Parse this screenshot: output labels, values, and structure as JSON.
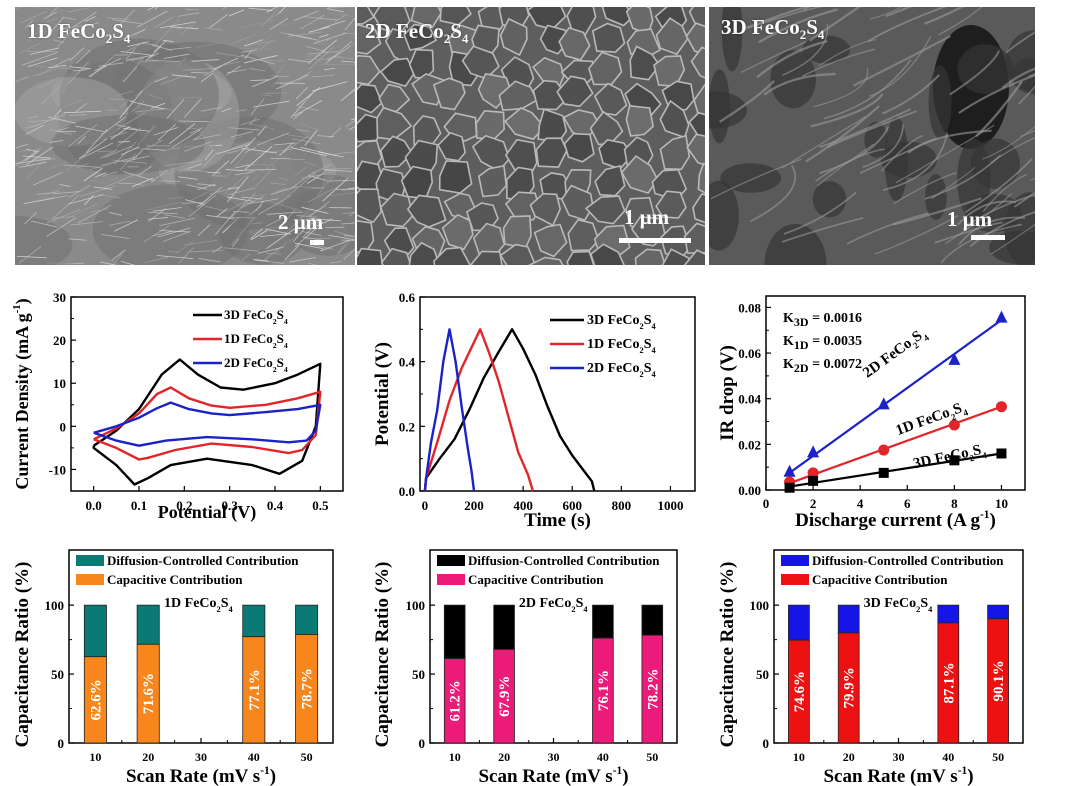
{
  "sem_images": [
    {
      "label": "1D FeCo",
      "sub": "2",
      "label2": "S",
      "sub2": "4",
      "scale": "2 μm",
      "texture": "nanowire"
    },
    {
      "label": "2D FeCo",
      "sub": "2",
      "label2": "S",
      "sub2": "4",
      "scale": "1 μm",
      "texture": "nanosheet"
    },
    {
      "label": "3D FeCo",
      "sub": "2",
      "label2": "S",
      "sub2": "4",
      "scale": "1 μm",
      "texture": "network"
    }
  ],
  "colors": {
    "3D": "#000000",
    "1D": "#e0262a",
    "2D": "#1a22c8",
    "teal": "#0b7a75",
    "orange": "#f7861d",
    "black": "#000000",
    "pink": "#ec1a78",
    "blue": "#1515e8",
    "red": "#ee1111"
  },
  "chart_data": [
    {
      "id": "cv",
      "type": "line",
      "xlabel": "Potential (V)",
      "ylabel": "Current Density (mA g",
      "ylabel_sup": "-1",
      "ylabel_end": ")",
      "xlim": [
        -0.05,
        0.55
      ],
      "ylim": [
        -15,
        30
      ],
      "xticks": [
        "0.0",
        "0.1",
        "0.2",
        "0.3",
        "0.4",
        "0.5"
      ],
      "xtick_values": [
        0,
        0.1,
        0.2,
        0.3,
        0.4,
        0.5
      ],
      "yticks": [
        "-10",
        "0",
        "10",
        "20",
        "30"
      ],
      "ytick_values": [
        -10,
        0,
        10,
        20,
        30
      ],
      "legend": [
        "3D FeCo2S4",
        "1D FeCo2S4",
        "2D FeCo2S4"
      ],
      "legend_position": "top-right",
      "series": [
        {
          "name": "3D FeCo2S4",
          "key": "3D",
          "anodic": [
            [
              0.0,
              -4.5
            ],
            [
              0.05,
              -1
            ],
            [
              0.1,
              4
            ],
            [
              0.15,
              12
            ],
            [
              0.19,
              15.5
            ],
            [
              0.23,
              12
            ],
            [
              0.28,
              9
            ],
            [
              0.33,
              8.5
            ],
            [
              0.4,
              10
            ],
            [
              0.45,
              12
            ],
            [
              0.5,
              14.5
            ]
          ],
          "cathodic": [
            [
              0.5,
              14.5
            ],
            [
              0.49,
              0
            ],
            [
              0.46,
              -8
            ],
            [
              0.41,
              -11
            ],
            [
              0.35,
              -9
            ],
            [
              0.25,
              -7.5
            ],
            [
              0.17,
              -9
            ],
            [
              0.12,
              -12
            ],
            [
              0.09,
              -13.5
            ],
            [
              0.05,
              -9
            ],
            [
              0.0,
              -5
            ],
            [
              0.0,
              -4.5
            ]
          ]
        },
        {
          "name": "1D FeCo2S4",
          "key": "1D",
          "anodic": [
            [
              0.0,
              -3
            ],
            [
              0.05,
              -0.5
            ],
            [
              0.1,
              3
            ],
            [
              0.14,
              7.5
            ],
            [
              0.17,
              9
            ],
            [
              0.21,
              6.5
            ],
            [
              0.26,
              4.8
            ],
            [
              0.3,
              4.3
            ],
            [
              0.38,
              5
            ],
            [
              0.45,
              6.5
            ],
            [
              0.5,
              8
            ]
          ],
          "cathodic": [
            [
              0.5,
              8
            ],
            [
              0.49,
              -2
            ],
            [
              0.46,
              -5.5
            ],
            [
              0.43,
              -6.2
            ],
            [
              0.35,
              -4.8
            ],
            [
              0.26,
              -4
            ],
            [
              0.18,
              -5.5
            ],
            [
              0.12,
              -7.3
            ],
            [
              0.1,
              -7.7
            ],
            [
              0.05,
              -5
            ],
            [
              0.0,
              -3
            ]
          ]
        },
        {
          "name": "2D FeCo2S4",
          "key": "2D",
          "anodic": [
            [
              0.0,
              -1.5
            ],
            [
              0.05,
              0
            ],
            [
              0.1,
              2
            ],
            [
              0.14,
              4.2
            ],
            [
              0.17,
              5.5
            ],
            [
              0.21,
              4
            ],
            [
              0.26,
              3
            ],
            [
              0.3,
              2.6
            ],
            [
              0.38,
              3.3
            ],
            [
              0.45,
              4
            ],
            [
              0.5,
              5
            ]
          ],
          "cathodic": [
            [
              0.5,
              5
            ],
            [
              0.49,
              -1
            ],
            [
              0.47,
              -3.3
            ],
            [
              0.43,
              -3.7
            ],
            [
              0.35,
              -3
            ],
            [
              0.25,
              -2.5
            ],
            [
              0.16,
              -3.3
            ],
            [
              0.1,
              -4.5
            ],
            [
              0.05,
              -3.3
            ],
            [
              0.0,
              -1.5
            ]
          ]
        }
      ]
    },
    {
      "id": "gcd",
      "type": "line",
      "xlabel": "Time (s)",
      "ylabel": "Potential (V)",
      "xlim": [
        -20,
        1100
      ],
      "ylim": [
        0,
        0.6
      ],
      "xticks": [
        "0",
        "200",
        "400",
        "600",
        "800",
        "1000"
      ],
      "xtick_values": [
        0,
        200,
        400,
        600,
        800,
        1000
      ],
      "yticks": [
        "0.0",
        "0.2",
        "0.4",
        "0.6"
      ],
      "ytick_values": [
        0,
        0.2,
        0.4,
        0.6
      ],
      "legend": [
        "3D FeCo2S4",
        "1D FeCo2S4",
        "2D FeCo2S4"
      ],
      "legend_position": "top-right",
      "series": [
        {
          "name": "3D FeCo2S4",
          "key": "3D",
          "points": [
            [
              0,
              0
            ],
            [
              5,
              0.04
            ],
            [
              60,
              0.1
            ],
            [
              120,
              0.16
            ],
            [
              180,
              0.25
            ],
            [
              240,
              0.35
            ],
            [
              300,
              0.43
            ],
            [
              355,
              0.5
            ],
            [
              400,
              0.44
            ],
            [
              450,
              0.36
            ],
            [
              500,
              0.26
            ],
            [
              550,
              0.17
            ],
            [
              600,
              0.11
            ],
            [
              650,
              0.06
            ],
            [
              680,
              0.03
            ],
            [
              690,
              0
            ]
          ]
        },
        {
          "name": "1D FeCo2S4",
          "key": "1D",
          "points": [
            [
              0,
              0
            ],
            [
              5,
              0.04
            ],
            [
              50,
              0.15
            ],
            [
              100,
              0.28
            ],
            [
              150,
              0.38
            ],
            [
              200,
              0.46
            ],
            [
              225,
              0.5
            ],
            [
              260,
              0.43
            ],
            [
              300,
              0.34
            ],
            [
              340,
              0.23
            ],
            [
              380,
              0.12
            ],
            [
              420,
              0.05
            ],
            [
              440,
              0
            ]
          ]
        },
        {
          "name": "2D FeCo2S4",
          "key": "2D",
          "points": [
            [
              0,
              0
            ],
            [
              5,
              0.04
            ],
            [
              25,
              0.15
            ],
            [
              50,
              0.25
            ],
            [
              75,
              0.4
            ],
            [
              100,
              0.5
            ],
            [
              125,
              0.4
            ],
            [
              150,
              0.26
            ],
            [
              175,
              0.13
            ],
            [
              190,
              0.06
            ],
            [
              200,
              0
            ]
          ]
        }
      ]
    },
    {
      "id": "ir",
      "type": "scatter",
      "xlabel": "Discharge current (A g",
      "xlabel_sup": "-1",
      "xlabel_end": ")",
      "ylabel": "IR drop (V)",
      "xlim": [
        0,
        11
      ],
      "ylim": [
        0,
        0.085
      ],
      "xticks": [
        "0",
        "2",
        "4",
        "6",
        "8",
        "10"
      ],
      "xtick_values": [
        0,
        2,
        4,
        6,
        8,
        10
      ],
      "yticks": [
        "0.00",
        "0.02",
        "0.04",
        "0.06",
        "0.08"
      ],
      "ytick_values": [
        0,
        0.02,
        0.04,
        0.06,
        0.08
      ],
      "annotations": [
        {
          "k": "K",
          "sub": "3D",
          "val": " = 0.0016"
        },
        {
          "k": "K",
          "sub": "1D",
          "val": " = 0.0035"
        },
        {
          "k": "K",
          "sub": "2D",
          "val": " = 0.0072"
        }
      ],
      "series": [
        {
          "name": "2D FeCo2S4",
          "key": "2D",
          "marker": "triangle",
          "x": [
            1,
            2,
            5,
            8,
            10
          ],
          "y": [
            0.008,
            0.0165,
            0.0375,
            0.057,
            0.0755
          ],
          "fit": [
            [
              1,
              0.0075
            ],
            [
              10,
              0.0745
            ]
          ],
          "label": "2D FeCo",
          "label_angle": -36
        },
        {
          "name": "1D FeCo2S4",
          "key": "1D",
          "marker": "circle",
          "x": [
            1,
            2,
            5,
            8,
            10
          ],
          "y": [
            0.0035,
            0.0075,
            0.0175,
            0.0285,
            0.0365
          ],
          "fit": [
            [
              1,
              0.003
            ],
            [
              10,
              0.0365
            ]
          ],
          "label": "1D FeCo",
          "label_angle": -20
        },
        {
          "name": "3D FeCo2S4",
          "key": "3D",
          "marker": "square",
          "x": [
            1,
            2,
            5,
            8,
            10
          ],
          "y": [
            0.001,
            0.004,
            0.0075,
            0.013,
            0.016
          ],
          "fit": [
            [
              1,
              0.0015
            ],
            [
              10,
              0.016
            ]
          ],
          "label": "3D FeCo",
          "label_angle": -12
        }
      ]
    },
    {
      "id": "ratio1d",
      "type": "bar",
      "title": "1D FeCo2S4",
      "xlabel": "Scan Rate (mV s",
      "xlabel_sup": "-1",
      "xlabel_end": ")",
      "ylabel": "Capacitance Ratio (%)",
      "categories": [
        "10",
        "20",
        "30",
        "40",
        "50"
      ],
      "bar_x": [
        10,
        20,
        40,
        50
      ],
      "xlim": [
        5,
        55
      ],
      "ylim": [
        0,
        140
      ],
      "yticks": [
        "0",
        "50",
        "100"
      ],
      "ytick_values": [
        0,
        50,
        100
      ],
      "series": [
        {
          "name": "Capacitive Contribution",
          "color_key": "orange",
          "values": [
            62.6,
            71.6,
            77.1,
            78.7
          ]
        },
        {
          "name": "Diffusion-Controlled Contribution",
          "color_key": "teal",
          "values": [
            37.4,
            28.4,
            22.9,
            21.3
          ]
        }
      ],
      "bar_labels": [
        "62.6%",
        "71.6%",
        "77.1%",
        "78.7%"
      ],
      "legend_position": "top-left"
    },
    {
      "id": "ratio2d",
      "type": "bar",
      "title": "2D FeCo2S4",
      "xlabel": "Scan Rate (mV s",
      "xlabel_sup": "-1",
      "xlabel_end": ")",
      "ylabel": "Capacitance Ratio (%)",
      "categories": [
        "10",
        "20",
        "30",
        "40",
        "50"
      ],
      "bar_x": [
        10,
        20,
        40,
        50
      ],
      "xlim": [
        5,
        55
      ],
      "ylim": [
        0,
        140
      ],
      "yticks": [
        "0",
        "50",
        "100"
      ],
      "ytick_values": [
        0,
        50,
        100
      ],
      "series": [
        {
          "name": "Capacitive Contribution",
          "color_key": "pink",
          "values": [
            61.2,
            67.9,
            76.1,
            78.2
          ]
        },
        {
          "name": "Diffusion-Controlled Contribution",
          "color_key": "black",
          "values": [
            38.8,
            32.1,
            23.9,
            21.8
          ]
        }
      ],
      "bar_labels": [
        "61.2%",
        "67.9%",
        "76.1%",
        "78.2%"
      ],
      "legend_position": "top-left"
    },
    {
      "id": "ratio3d",
      "type": "bar",
      "title": "3D FeCo2S4",
      "xlabel": "Scan Rate (mV s",
      "xlabel_sup": "-1",
      "xlabel_end": ")",
      "ylabel": "Capacitance Ratio (%)",
      "categories": [
        "10",
        "20",
        "30",
        "40",
        "50"
      ],
      "bar_x": [
        10,
        20,
        40,
        50
      ],
      "xlim": [
        5,
        55
      ],
      "ylim": [
        0,
        140
      ],
      "yticks": [
        "0",
        "50",
        "100"
      ],
      "ytick_values": [
        0,
        50,
        100
      ],
      "series": [
        {
          "name": "Capacitive Contribution",
          "color_key": "red",
          "values": [
            74.6,
            79.9,
            87.1,
            90.1
          ]
        },
        {
          "name": "Diffusion-Controlled Contribution",
          "color_key": "blue",
          "values": [
            25.4,
            20.1,
            12.9,
            9.9
          ]
        }
      ],
      "bar_labels": [
        "74.6%",
        "79.9%",
        "87.1%",
        "90.1%"
      ],
      "legend_position": "top-left"
    }
  ]
}
